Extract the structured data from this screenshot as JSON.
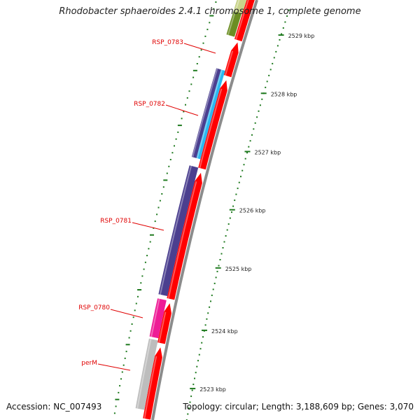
{
  "title": "Rhodobacter sphaeroides 2.4.1 chromosome 1, complete genome",
  "footer": {
    "accession": "Accession: NC_007493",
    "summary": "Topology: circular; Length: 3,188,609 bp; Genes: 3,070"
  },
  "colors": {
    "red": "#ff0000",
    "dark_red": "#b30000",
    "purple": "#4b3f8f",
    "light_blue": "#2bb8f0",
    "magenta": "#ee1c96",
    "grey": "#bdbdbd",
    "olive": "#6b8e23",
    "pale_olive": "#c9d48a",
    "backbone": "#8c8c8c",
    "tick_green": "#1f7a1f",
    "label_red": "#e00000"
  },
  "gene_labels": [
    {
      "name": "RSP_0783"
    },
    {
      "name": "RSP_0782"
    },
    {
      "name": "RSP_0781"
    },
    {
      "name": "RSP_0780"
    },
    {
      "name": "perM"
    }
  ],
  "scale_labels": [
    "2529 kbp",
    "2528 kbp",
    "2527 kbp",
    "2526 kbp",
    "2525 kbp",
    "2524 kbp",
    "2523 kbp"
  ]
}
